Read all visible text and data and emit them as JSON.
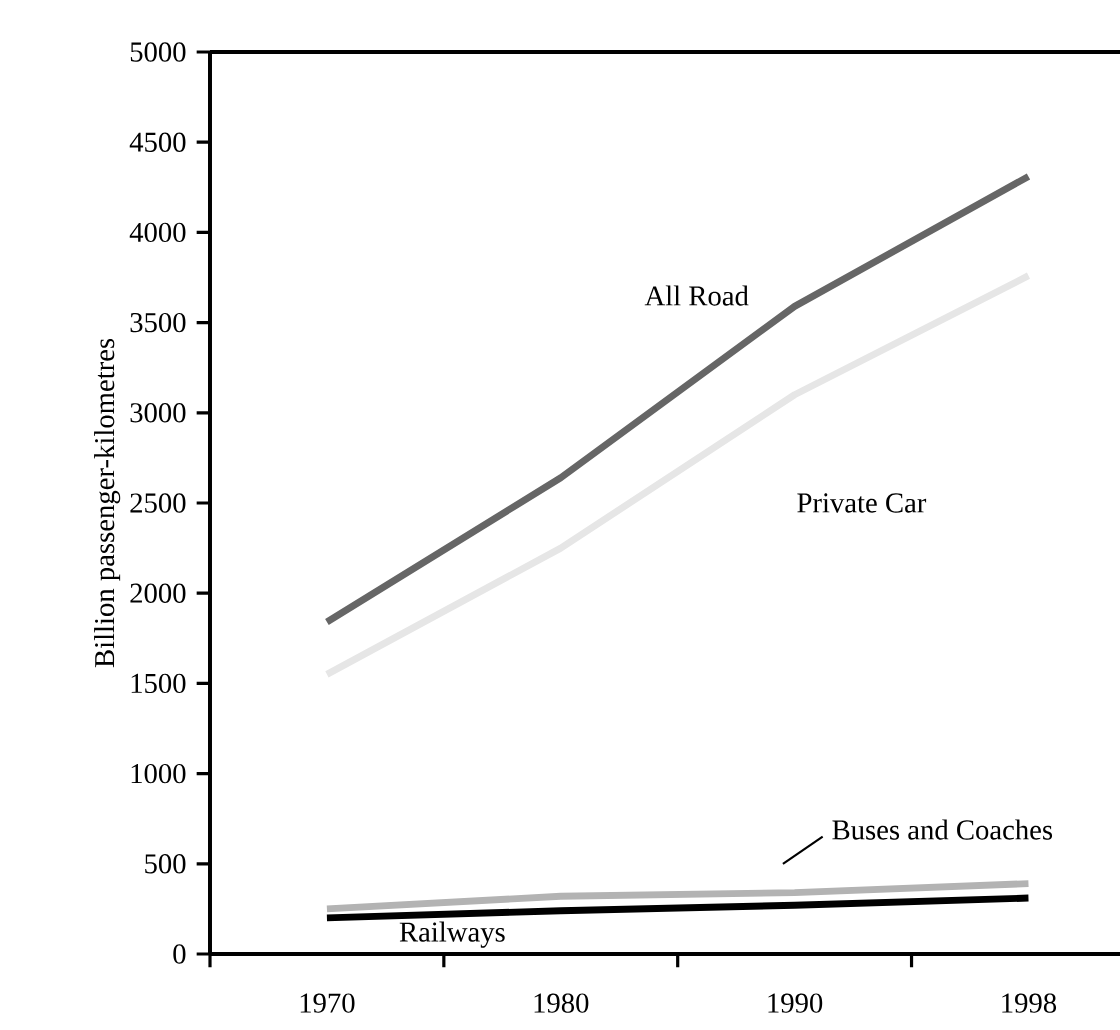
{
  "chart_data": {
    "type": "line",
    "ylabel": "Billion passenger-kilometres",
    "categories": [
      "1970",
      "1980",
      "1990",
      "1998"
    ],
    "series": [
      {
        "name": "All Road",
        "color": "#666666",
        "values": [
          1840,
          2640,
          3590,
          4310
        ]
      },
      {
        "name": "Private Car",
        "color": "#e6e6e6",
        "values": [
          1550,
          2250,
          3100,
          3760
        ]
      },
      {
        "name": "Buses and Coaches",
        "color": "#b3b3b3",
        "values": [
          250,
          320,
          340,
          390
        ]
      },
      {
        "name": "Railways",
        "color": "#000000",
        "values": [
          200,
          240,
          270,
          310
        ]
      }
    ],
    "ylim": [
      0,
      5000
    ],
    "yticks": [
      0,
      500,
      1000,
      1500,
      2000,
      2500,
      3000,
      3500,
      4000,
      4500,
      5000
    ],
    "grid": false,
    "legend": false,
    "marker": "none",
    "line_style": "solid"
  }
}
